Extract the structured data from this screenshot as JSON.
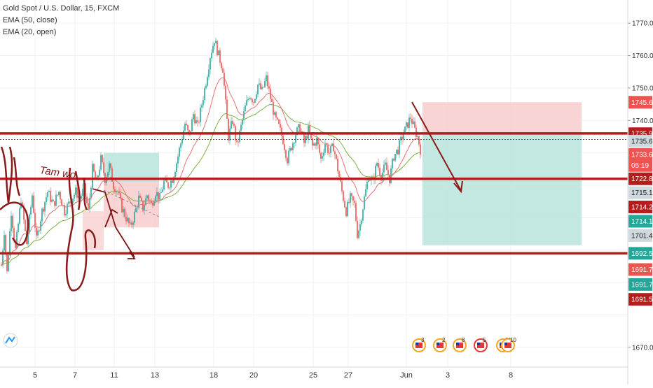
{
  "legend": {
    "symbol": "Gold Spot / U.S. Dollar, 15, FXCM",
    "indicator_1": "EMA (50, close)",
    "indicator_2": "EMA (20, open)"
  },
  "handwriting": "Tam wo",
  "event_icons": [
    {
      "label": "3",
      "color": "#f5a623"
    },
    {
      "label": "2",
      "color": "#f5a623"
    },
    {
      "label": "8",
      "color": "#f5a623"
    },
    {
      "label": "5",
      "color": "#e53935"
    },
    {
      "label": "31",
      "color": "#f5a623"
    },
    {
      "label": "10",
      "color": "#f5a623"
    }
  ],
  "chart_data": {
    "type": "candlestick",
    "title": "Gold Spot / U.S. Dollar, 15, FXCM",
    "ylim": [
      1665,
      1775
    ],
    "y_ticks": [
      1670,
      1680,
      1690,
      1700,
      1710,
      1720,
      1730,
      1740,
      1750,
      1760,
      1770
    ],
    "y_tick_labels": [
      "1670.00",
      "",
      "",
      "",
      "",
      "",
      "",
      "1740.00",
      "1750.00",
      "1760.00",
      "1770.00"
    ],
    "x_labels": [
      "5",
      "7",
      "11",
      "13",
      "18",
      "20",
      "25",
      "27",
      "Jun",
      "3",
      "8"
    ],
    "grid": true,
    "price_path": [
      [
        0,
        1690
      ],
      [
        6,
        1706
      ],
      [
        10,
        1693
      ],
      [
        16,
        1712
      ],
      [
        22,
        1700
      ],
      [
        30,
        1716
      ],
      [
        38,
        1702
      ],
      [
        46,
        1717
      ],
      [
        52,
        1703
      ],
      [
        60,
        1712
      ],
      [
        68,
        1718
      ],
      [
        76,
        1714
      ],
      [
        84,
        1718
      ],
      [
        92,
        1712
      ],
      [
        100,
        1715
      ],
      [
        108,
        1718
      ],
      [
        114,
        1716
      ],
      [
        120,
        1719
      ],
      [
        126,
        1712
      ],
      [
        132,
        1725
      ],
      [
        138,
        1721
      ],
      [
        144,
        1728
      ],
      [
        150,
        1722
      ],
      [
        156,
        1726
      ],
      [
        162,
        1720
      ],
      [
        168,
        1718
      ],
      [
        174,
        1713
      ],
      [
        180,
        1710
      ],
      [
        186,
        1707
      ],
      [
        192,
        1711
      ],
      [
        198,
        1716
      ],
      [
        204,
        1713
      ],
      [
        210,
        1717
      ],
      [
        216,
        1714
      ],
      [
        222,
        1718
      ],
      [
        228,
        1716
      ],
      [
        234,
        1721
      ],
      [
        240,
        1720
      ],
      [
        246,
        1722
      ],
      [
        252,
        1727
      ],
      [
        258,
        1733
      ],
      [
        264,
        1739
      ],
      [
        270,
        1735
      ],
      [
        276,
        1742
      ],
      [
        282,
        1738
      ],
      [
        288,
        1745
      ],
      [
        294,
        1752
      ],
      [
        300,
        1760
      ],
      [
        306,
        1765
      ],
      [
        312,
        1760
      ],
      [
        318,
        1756
      ],
      [
        322,
        1745
      ],
      [
        326,
        1735
      ],
      [
        332,
        1740
      ],
      [
        338,
        1732
      ],
      [
        344,
        1738
      ],
      [
        350,
        1744
      ],
      [
        356,
        1748
      ],
      [
        362,
        1746
      ],
      [
        368,
        1751
      ],
      [
        374,
        1749
      ],
      [
        380,
        1753
      ],
      [
        386,
        1747
      ],
      [
        392,
        1741
      ],
      [
        398,
        1738
      ],
      [
        404,
        1734
      ],
      [
        410,
        1728
      ],
      [
        416,
        1732
      ],
      [
        422,
        1736
      ],
      [
        428,
        1738
      ],
      [
        434,
        1733
      ],
      [
        440,
        1737
      ],
      [
        446,
        1732
      ],
      [
        452,
        1734
      ],
      [
        458,
        1728
      ],
      [
        464,
        1733
      ],
      [
        470,
        1730
      ],
      [
        476,
        1732
      ],
      [
        482,
        1725
      ],
      [
        488,
        1718
      ],
      [
        494,
        1712
      ],
      [
        500,
        1716
      ],
      [
        506,
        1714
      ],
      [
        510,
        1705
      ],
      [
        514,
        1708
      ],
      [
        520,
        1716
      ],
      [
        526,
        1723
      ],
      [
        532,
        1721
      ],
      [
        538,
        1727
      ],
      [
        544,
        1723
      ],
      [
        550,
        1726
      ],
      [
        556,
        1722
      ],
      [
        562,
        1729
      ],
      [
        568,
        1731
      ],
      [
        574,
        1735
      ],
      [
        580,
        1738
      ],
      [
        586,
        1741
      ],
      [
        592,
        1737
      ],
      [
        596,
        1735
      ],
      [
        600,
        1731
      ]
    ],
    "horizontal_levels": [
      1736.0,
      1722.0,
      1699.0
    ],
    "dotted_level": 1735.0,
    "trade_boxes": [
      {
        "type": "long",
        "x_start": 148,
        "x_end": 227,
        "entry": 1721,
        "stop": 1707,
        "target": 1730
      },
      {
        "type": "short",
        "x_start": 603,
        "x_end": 830,
        "entry": 1735.9,
        "stop": 1745.61,
        "target": 1701.49
      }
    ],
    "price_labels": [
      {
        "value": "1745.61",
        "y_value": 1745.61,
        "color": "#ef5350"
      },
      {
        "value": "1735.92",
        "y_value": 1735.92,
        "color": "#b71c1c"
      },
      {
        "value": "1735.65",
        "y_value": 1733.6,
        "color": "#cfd8dc"
      },
      {
        "value": "1733.61",
        "y_value": 1729.5,
        "color": "#ef5350"
      },
      {
        "value": "05:19",
        "y_value": 1726.1,
        "color": "#ef5350"
      },
      {
        "value": "1722.85",
        "y_value": 1722.0,
        "color": "#b71c1c"
      },
      {
        "value": "1715.14",
        "y_value": 1717.7,
        "color": "#cfd8dc"
      },
      {
        "value": "1714.20",
        "y_value": 1713.3,
        "color": "#b71c1c"
      },
      {
        "value": "1714.13",
        "y_value": 1708.9,
        "color": "#26a69a"
      },
      {
        "value": "1701.49",
        "y_value": 1704.5,
        "color": "#cfd8dc"
      },
      {
        "value": "1692.54",
        "y_value": 1699.0,
        "color": "#26a69a"
      },
      {
        "value": "1691.76",
        "y_value": 1694.0,
        "color": "#ef5350"
      },
      {
        "value": "1691.75",
        "y_value": 1689.4,
        "color": "#26a69a"
      },
      {
        "value": "1691.51",
        "y_value": 1684.8,
        "color": "#b71c1c"
      }
    ]
  }
}
